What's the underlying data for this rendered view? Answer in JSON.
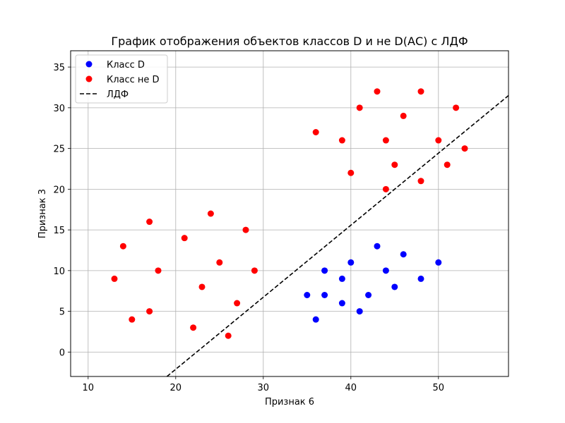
{
  "chart_data": {
    "type": "scatter",
    "title": "График отображения объектов классов D и не D(АС) с ЛДФ",
    "xlabel": "Признак 6",
    "ylabel": "Признак 3",
    "xlim": [
      8,
      58
    ],
    "ylim": [
      -3,
      37
    ],
    "xticks": [
      10,
      20,
      30,
      40,
      50
    ],
    "yticks": [
      0,
      5,
      10,
      15,
      20,
      25,
      30,
      35
    ],
    "grid": true,
    "legend_position": "top-left",
    "series": [
      {
        "name": "Класс D",
        "color": "#0000ff",
        "marker": "circle",
        "points": [
          [
            35,
            7
          ],
          [
            36,
            4
          ],
          [
            37,
            10
          ],
          [
            37,
            7
          ],
          [
            39,
            9
          ],
          [
            39,
            6
          ],
          [
            40,
            11
          ],
          [
            41,
            5
          ],
          [
            42,
            7
          ],
          [
            43,
            13
          ],
          [
            44,
            10
          ],
          [
            45,
            8
          ],
          [
            46,
            12
          ],
          [
            48,
            9
          ],
          [
            50,
            11
          ]
        ]
      },
      {
        "name": "Класс не D",
        "color": "#ff0000",
        "marker": "circle",
        "points": [
          [
            13,
            9
          ],
          [
            14,
            13
          ],
          [
            15,
            4
          ],
          [
            17,
            16
          ],
          [
            17,
            5
          ],
          [
            18,
            10
          ],
          [
            21,
            14
          ],
          [
            22,
            3
          ],
          [
            23,
            8
          ],
          [
            24,
            17
          ],
          [
            25,
            11
          ],
          [
            26,
            2
          ],
          [
            27,
            6
          ],
          [
            28,
            15
          ],
          [
            29,
            10
          ],
          [
            36,
            27
          ],
          [
            39,
            26
          ],
          [
            40,
            22
          ],
          [
            41,
            30
          ],
          [
            43,
            32
          ],
          [
            44,
            26
          ],
          [
            44,
            20
          ],
          [
            45,
            23
          ],
          [
            46,
            29
          ],
          [
            48,
            32
          ],
          [
            48,
            21
          ],
          [
            50,
            26
          ],
          [
            51,
            23
          ],
          [
            52,
            30
          ],
          [
            53,
            25
          ]
        ]
      },
      {
        "name": "ЛДФ",
        "color": "#000000",
        "style": "dashed-line",
        "points": [
          [
            19,
            -3
          ],
          [
            58,
            31.5
          ]
        ]
      }
    ]
  }
}
